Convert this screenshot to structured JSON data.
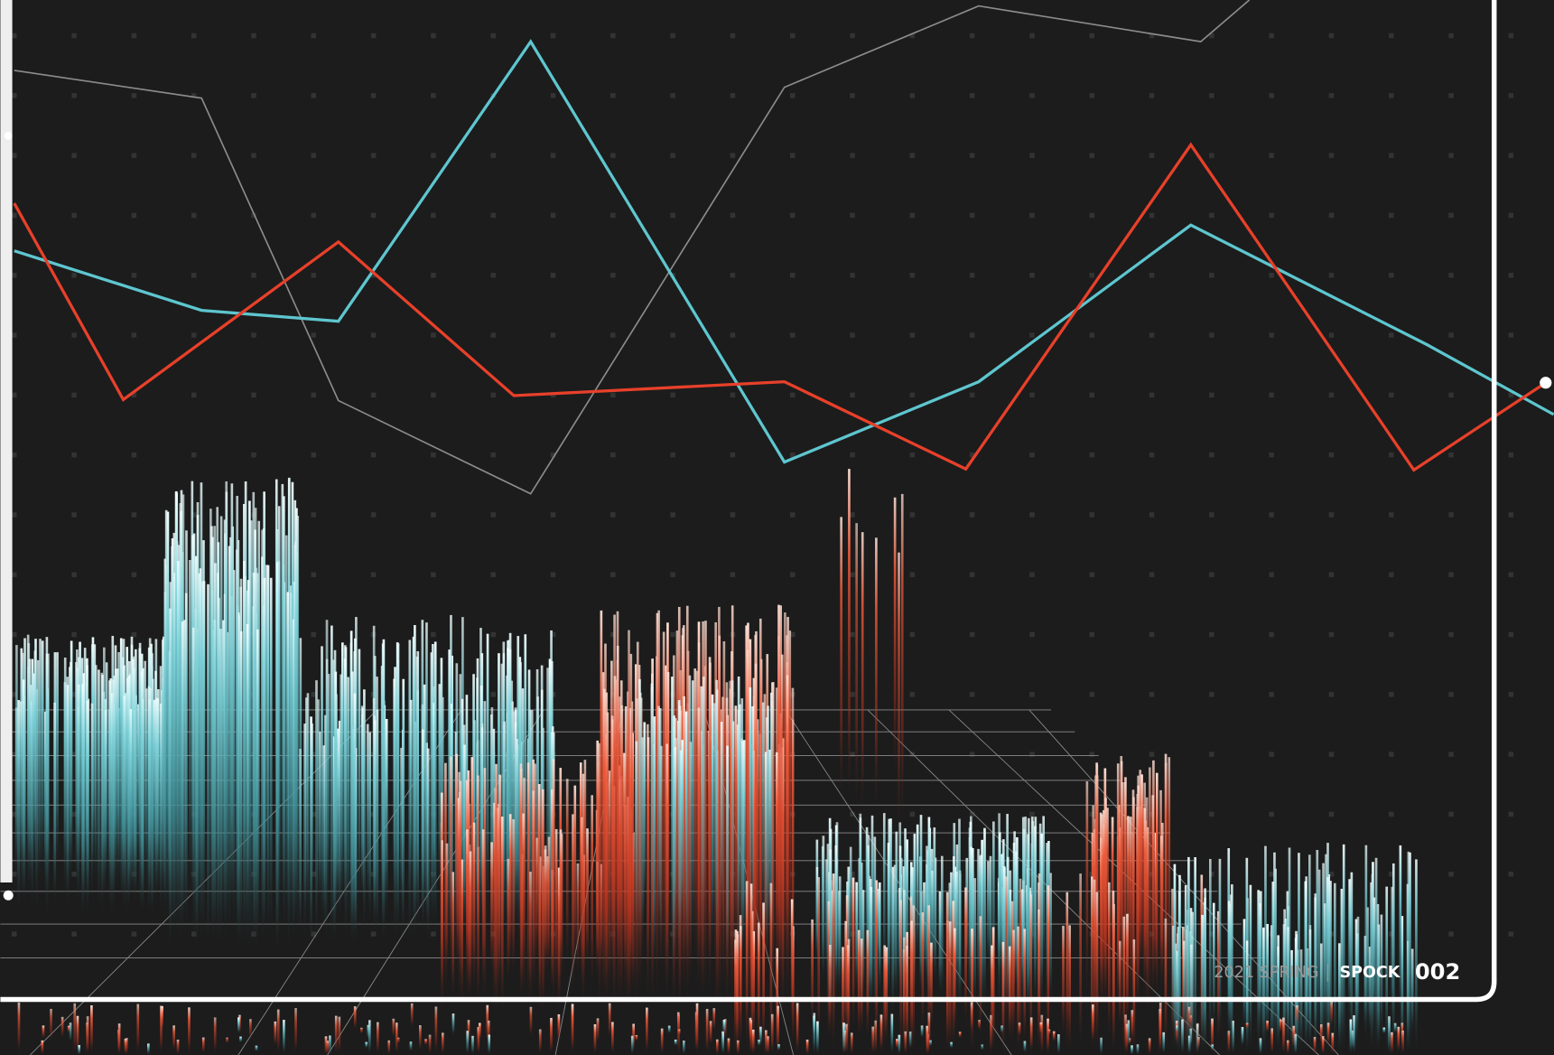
{
  "footer": {
    "season": "2021 SPRING",
    "name": "SPOCK",
    "number": "002"
  }
}
